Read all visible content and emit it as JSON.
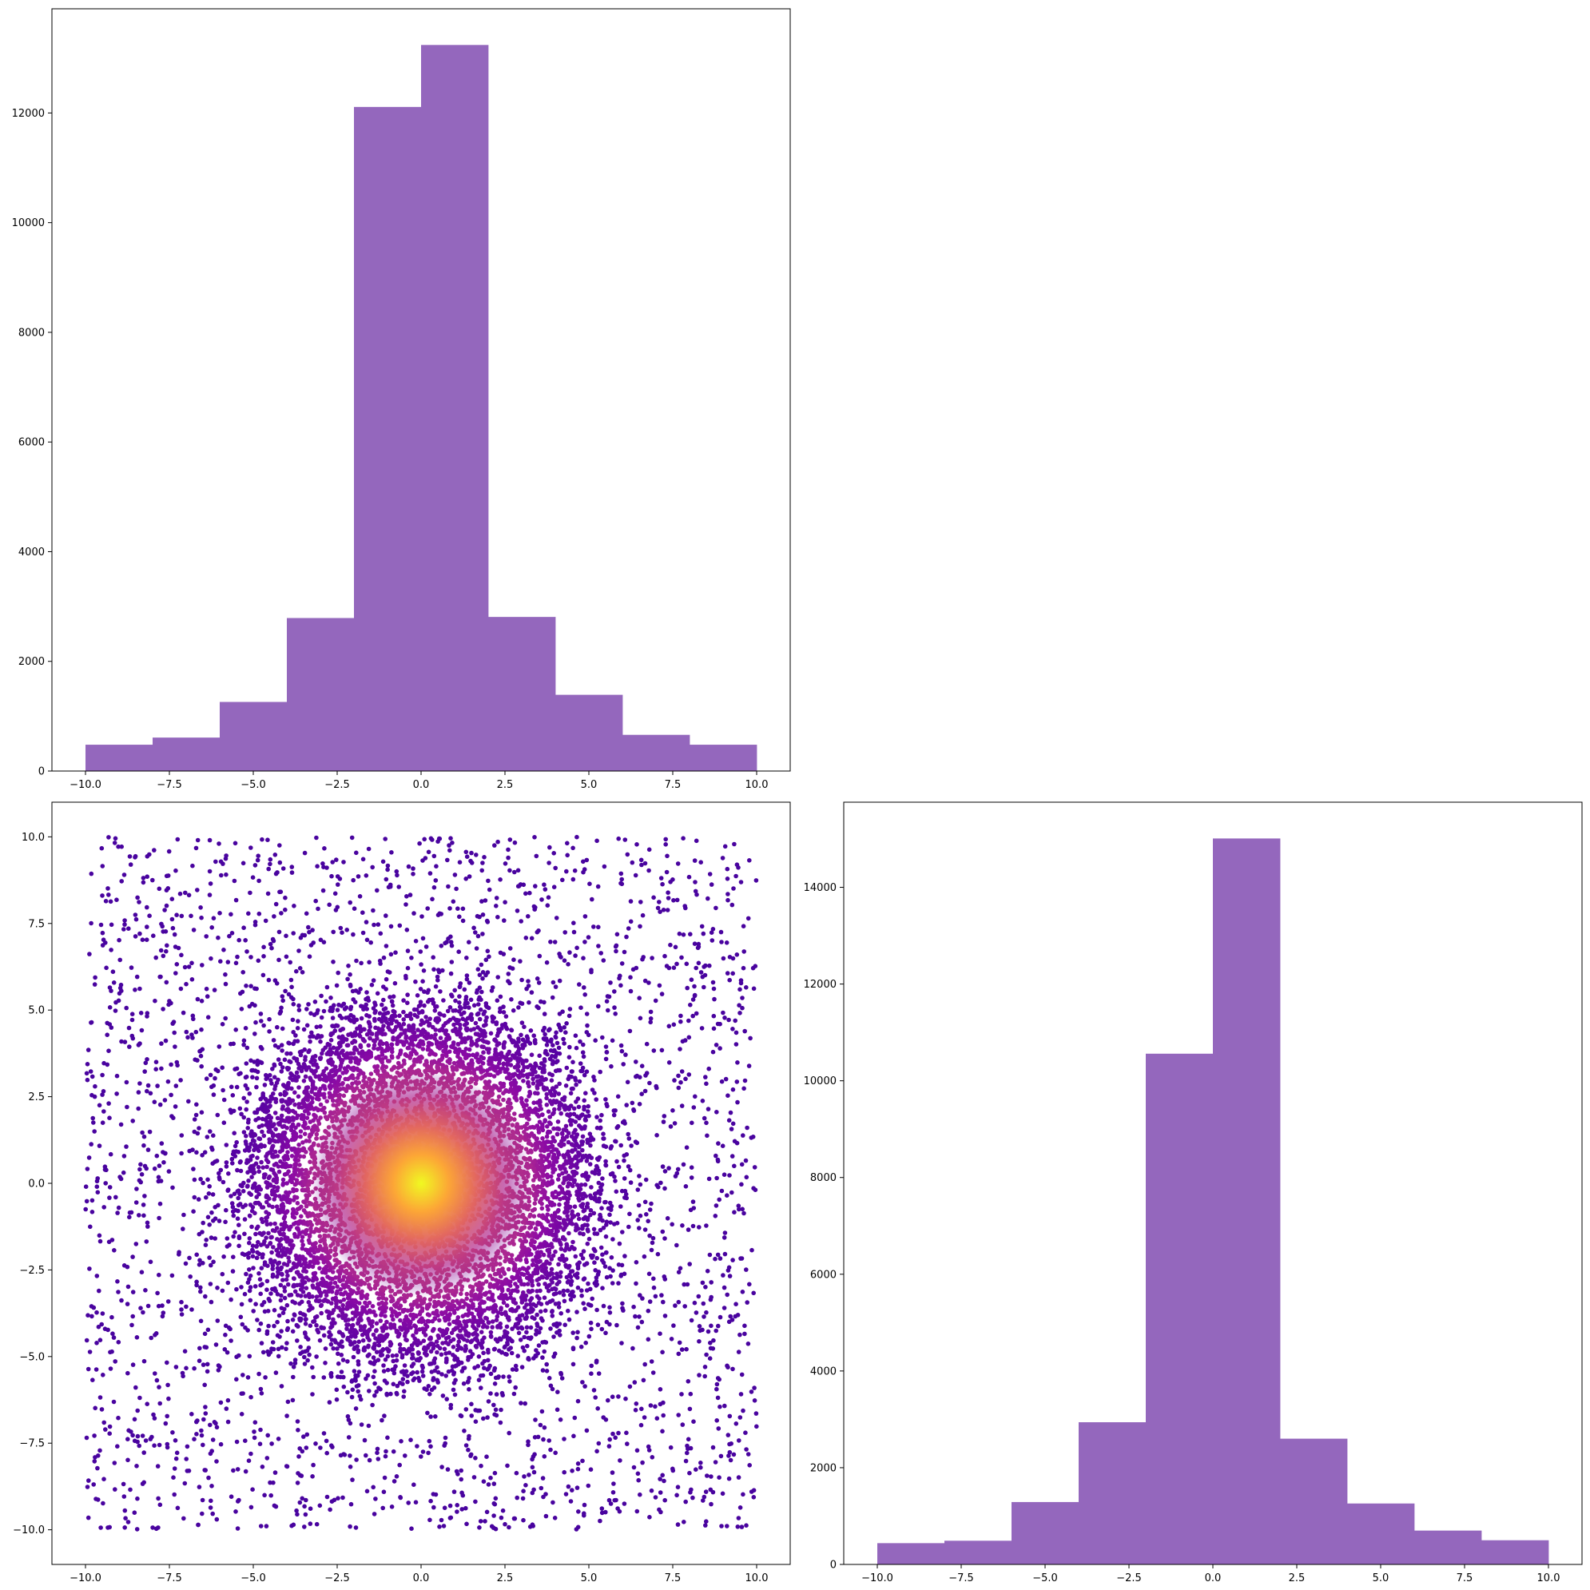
{
  "colors": {
    "bar": "#9467bd",
    "axis": "#000000",
    "background": "#ffffff",
    "colormap": "plasma"
  },
  "chart_data": [
    {
      "id": "hist_x",
      "position": "top-left",
      "type": "bar",
      "title": "",
      "xlabel": "",
      "ylabel": "",
      "bin_edges": [
        -10,
        -8,
        -6,
        -4,
        -2,
        0,
        2,
        4,
        6,
        8,
        10
      ],
      "values": [
        480,
        610,
        1260,
        2790,
        12110,
        13240,
        2810,
        1390,
        660,
        480
      ],
      "xlim": [
        -11,
        11
      ],
      "ylim": [
        0,
        13900
      ],
      "xticks": [
        -10,
        -7.5,
        -5,
        -2.5,
        0,
        2.5,
        5,
        7.5,
        10
      ],
      "xtick_labels": [
        "−10.0",
        "−7.5",
        "−5.0",
        "−2.5",
        "0.0",
        "2.5",
        "5.0",
        "7.5",
        "10.0"
      ],
      "yticks": [
        0,
        2000,
        4000,
        6000,
        8000,
        10000,
        12000
      ],
      "ytick_labels": [
        "0",
        "2000",
        "4000",
        "6000",
        "8000",
        "10000",
        "12000"
      ],
      "grid": false,
      "legend": "none"
    },
    {
      "id": "scatter_xy",
      "position": "bottom-left",
      "type": "scatter",
      "title": "",
      "xlabel": "",
      "ylabel": "",
      "x_range": [
        -10,
        10
      ],
      "y_range": [
        -10,
        10
      ],
      "xlim": [
        -11,
        11
      ],
      "ylim": [
        -11,
        11
      ],
      "color_mapping": "density",
      "colormap": "plasma",
      "density_peak": [
        0,
        0
      ],
      "xticks": [
        -10,
        -7.5,
        -5,
        -2.5,
        0,
        2.5,
        5,
        7.5,
        10
      ],
      "xtick_labels": [
        "−10.0",
        "−7.5",
        "−5.0",
        "−2.5",
        "0.0",
        "2.5",
        "5.0",
        "7.5",
        "10.0"
      ],
      "yticks": [
        -10,
        -7.5,
        -5,
        -2.5,
        0,
        2.5,
        5,
        7.5,
        10
      ],
      "ytick_labels": [
        "−10.0",
        "−7.5",
        "−5.0",
        "−2.5",
        "0.0",
        "2.5",
        "5.0",
        "7.5",
        "10.0"
      ],
      "grid": false,
      "legend": "none"
    },
    {
      "id": "hist_y",
      "position": "bottom-right",
      "type": "bar",
      "title": "",
      "xlabel": "",
      "ylabel": "",
      "bin_edges": [
        -10,
        -8,
        -6,
        -4,
        -2,
        0,
        2,
        4,
        6,
        8,
        10
      ],
      "values": [
        440,
        490,
        1290,
        2940,
        10560,
        15010,
        2600,
        1260,
        700,
        500
      ],
      "xlim": [
        -11,
        11
      ],
      "ylim": [
        0,
        15760
      ],
      "xticks": [
        -10,
        -7.5,
        -5,
        -2.5,
        0,
        2.5,
        5,
        7.5,
        10
      ],
      "xtick_labels": [
        "−10.0",
        "−7.5",
        "−5.0",
        "−2.5",
        "0.0",
        "2.5",
        "5.0",
        "7.5",
        "10.0"
      ],
      "yticks": [
        0,
        2000,
        4000,
        6000,
        8000,
        10000,
        12000,
        14000
      ],
      "ytick_labels": [
        "0",
        "2000",
        "4000",
        "6000",
        "8000",
        "10000",
        "12000",
        "14000"
      ],
      "grid": false,
      "legend": "none"
    }
  ]
}
